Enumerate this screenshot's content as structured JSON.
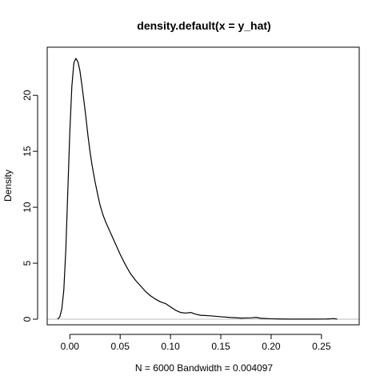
{
  "chart_data": {
    "type": "line",
    "title": "density.default(x = y_hat)",
    "xlabel": "N = 6000   Bandwidth = 0.004097",
    "ylabel": "Density",
    "xlim": [
      -0.0225,
      0.2875
    ],
    "ylim": [
      -0.5,
      24.3
    ],
    "x_ticks": [
      0.0,
      0.05,
      0.1,
      0.15,
      0.2,
      0.25
    ],
    "x_tick_labels": [
      "0.00",
      "0.05",
      "0.10",
      "0.15",
      "0.20",
      "0.25"
    ],
    "y_ticks": [
      0,
      5,
      10,
      15,
      20
    ],
    "y_tick_labels": [
      "0",
      "5",
      "10",
      "15",
      "20"
    ],
    "baseline": 0,
    "series": [
      {
        "name": "density",
        "x": [
          -0.0123,
          -0.01,
          -0.008,
          -0.006,
          -0.004,
          -0.002,
          0.0,
          0.002,
          0.004,
          0.006,
          0.008,
          0.01,
          0.012,
          0.014,
          0.016,
          0.018,
          0.02,
          0.022,
          0.025,
          0.028,
          0.03,
          0.033,
          0.036,
          0.04,
          0.045,
          0.05,
          0.055,
          0.06,
          0.065,
          0.07,
          0.075,
          0.08,
          0.085,
          0.09,
          0.095,
          0.1,
          0.105,
          0.11,
          0.115,
          0.12,
          0.125,
          0.13,
          0.14,
          0.15,
          0.16,
          0.17,
          0.18,
          0.185,
          0.19,
          0.2,
          0.21,
          0.22,
          0.24,
          0.255,
          0.26,
          0.262,
          0.264,
          0.2656
        ],
        "y": [
          0.0,
          0.2,
          0.9,
          2.6,
          6.2,
          11.5,
          16.8,
          20.8,
          22.9,
          23.3,
          23.0,
          22.2,
          20.9,
          19.5,
          18.0,
          16.4,
          15.0,
          13.8,
          12.3,
          11.0,
          10.2,
          9.3,
          8.6,
          7.8,
          6.8,
          5.8,
          4.9,
          4.1,
          3.5,
          3.0,
          2.5,
          2.1,
          1.8,
          1.55,
          1.4,
          1.1,
          0.8,
          0.6,
          0.55,
          0.6,
          0.45,
          0.35,
          0.3,
          0.22,
          0.15,
          0.1,
          0.12,
          0.16,
          0.08,
          0.04,
          0.02,
          0.01,
          0.01,
          0.02,
          0.04,
          0.06,
          0.03,
          0.0
        ]
      }
    ]
  }
}
